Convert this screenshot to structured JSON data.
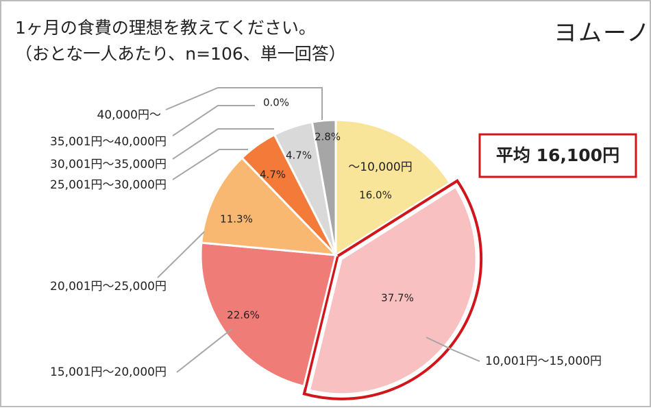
{
  "chart_data": {
    "type": "pie",
    "title": "1ヶ月の食費の理想を教えてください。",
    "subtitle": "（おとな一人あたり、n=106、単一回答）",
    "logo": "ヨムーノ",
    "annotation": "平均 16,100円",
    "categories": [
      "～10,000円",
      "10,001円～15,000円",
      "15,001円～20,000円",
      "20,001円～25,000円",
      "25,001円～30,000円",
      "30,001円～35,000円",
      "35,001円～40,000円",
      "40,000円～"
    ],
    "values": [
      16.0,
      37.7,
      22.6,
      11.3,
      4.7,
      4.7,
      2.8,
      0.0
    ],
    "value_labels": [
      "16.0%",
      "37.7%",
      "22.6%",
      "11.3%",
      "4.7%",
      "4.7%",
      "2.8%",
      "0.0%"
    ],
    "colors": [
      "#F9E59A",
      "#F8C0C0",
      "#F07C78",
      "#F9B871",
      "#F47A3A",
      "#D9D9D9",
      "#A6A6A6",
      "#808080"
    ],
    "highlight": 1
  }
}
